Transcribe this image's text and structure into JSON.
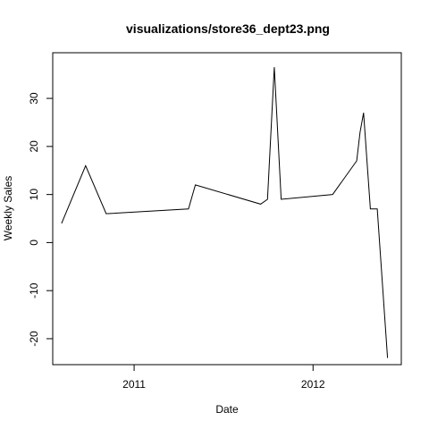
{
  "chart_data": {
    "type": "line",
    "title": "visualizations/store36_dept23.png",
    "xlabel": "Date",
    "ylabel": "Weekly Sales",
    "x_axis_kind": "date",
    "xlim": [
      "2010-07-19",
      "2012-06-29"
    ],
    "ylim": [
      -25.4,
      39.5
    ],
    "x_ticks": [
      {
        "date": "2011-01-01",
        "label": "2011"
      },
      {
        "date": "2012-01-01",
        "label": "2012"
      }
    ],
    "y_ticks": [
      -20,
      -10,
      0,
      10,
      20,
      30
    ],
    "grid": false,
    "legend": "none",
    "series": [
      {
        "color": "#000000",
        "points": [
          {
            "x": "2010-08-06",
            "y": 4
          },
          {
            "x": "2010-09-24",
            "y": 16
          },
          {
            "x": "2010-11-05",
            "y": 6
          },
          {
            "x": "2011-04-22",
            "y": 7
          },
          {
            "x": "2011-05-06",
            "y": 12
          },
          {
            "x": "2011-09-16",
            "y": 8
          },
          {
            "x": "2011-09-30",
            "y": 9
          },
          {
            "x": "2011-10-14",
            "y": 36.5
          },
          {
            "x": "2011-10-28",
            "y": 9
          },
          {
            "x": "2012-02-10",
            "y": 10
          },
          {
            "x": "2012-03-30",
            "y": 17
          },
          {
            "x": "2012-04-06",
            "y": 23
          },
          {
            "x": "2012-04-13",
            "y": 27
          },
          {
            "x": "2012-04-27",
            "y": 7
          },
          {
            "x": "2012-05-11",
            "y": 7
          },
          {
            "x": "2012-06-01",
            "y": -24
          }
        ]
      }
    ]
  }
}
